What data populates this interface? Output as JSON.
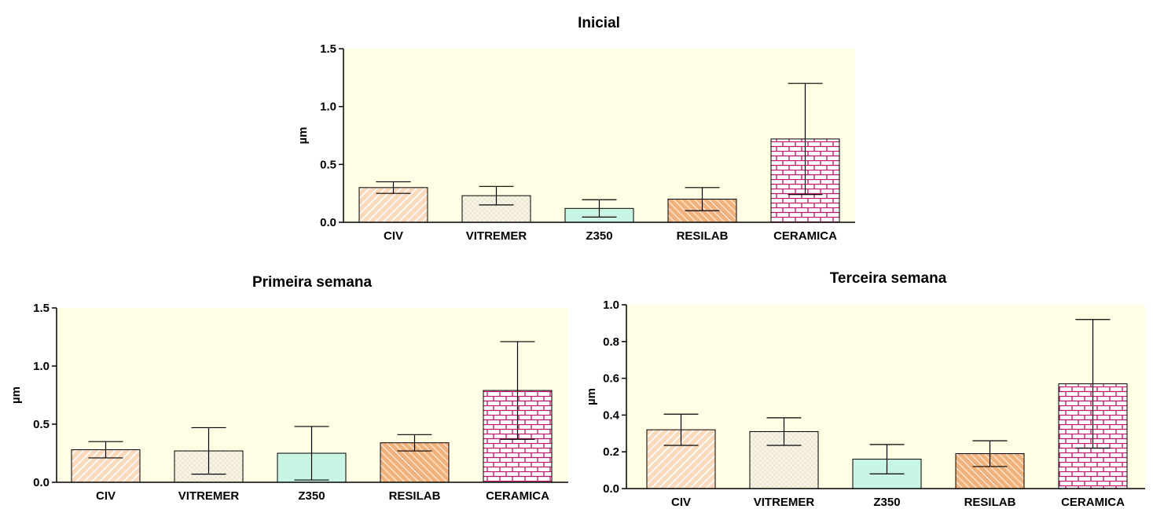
{
  "chart_data": [
    {
      "type": "bar",
      "title": "Inicial",
      "ylabel": "µm",
      "categories": [
        "CIV",
        "VITREMER",
        "Z350",
        "RESILAB",
        "CERAMICA"
      ],
      "values": [
        0.3,
        0.23,
        0.12,
        0.2,
        0.72
      ],
      "error": [
        0.05,
        0.08,
        0.075,
        0.1,
        0.48
      ],
      "ylim": [
        0,
        1.5
      ],
      "yticks": [
        "0.0",
        "0.5",
        "1.0",
        "1.5"
      ],
      "grid": false
    },
    {
      "type": "bar",
      "title": "Primeira semana",
      "ylabel": "µm",
      "categories": [
        "CIV",
        "VITREMER",
        "Z350",
        "RESILAB",
        "CERAMICA"
      ],
      "values": [
        0.28,
        0.27,
        0.25,
        0.34,
        0.79
      ],
      "error": [
        0.07,
        0.2,
        0.23,
        0.07,
        0.42
      ],
      "ylim": [
        0,
        1.5
      ],
      "yticks": [
        "0.0",
        "0.5",
        "1.0",
        "1.5"
      ],
      "grid": false
    },
    {
      "type": "bar",
      "title": "Terceira semana",
      "ylabel": "µm",
      "categories": [
        "CIV",
        "VITREMER",
        "Z350",
        "RESILAB",
        "CERAMICA"
      ],
      "values": [
        0.32,
        0.31,
        0.16,
        0.19,
        0.57
      ],
      "error": [
        0.085,
        0.075,
        0.08,
        0.07,
        0.35
      ],
      "ylim": [
        0,
        1.0
      ],
      "yticks": [
        "0.0",
        "0.2",
        "0.4",
        "0.6",
        "0.8",
        "1.0"
      ],
      "grid": false
    }
  ],
  "colors": {
    "plot_background": "#fffde3",
    "CIV": "#fbd9bd",
    "VITREMER": "#efe8d2",
    "Z350": "#c9f5e4",
    "RESILAB": "#f0b27c",
    "CERAMICA": "#ffffff",
    "CERAMICA_pattern": "#c0146a"
  }
}
